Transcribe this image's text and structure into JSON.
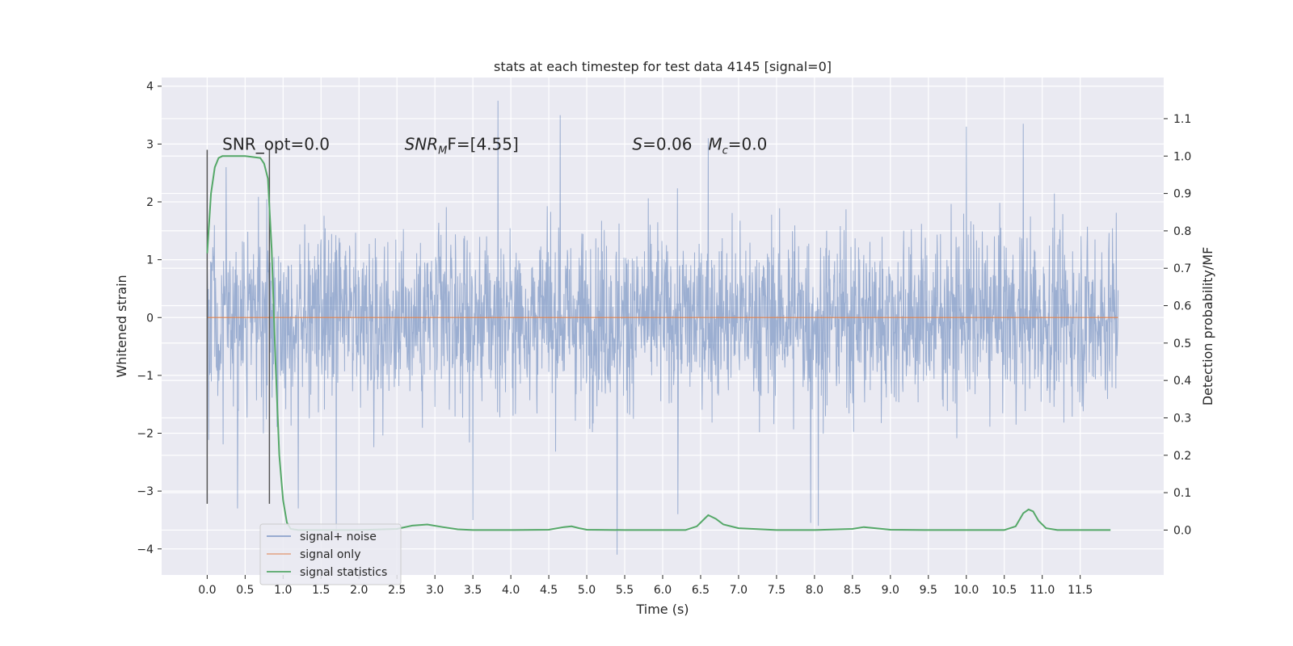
{
  "chart_data": {
    "type": "line",
    "title": "stats at each timestep for test data 4145 [signal=0]",
    "xlabel": "Time (s)",
    "ylabel": "Whitened strain",
    "y2label": "Detection probability/MF",
    "xlim": [
      -0.6,
      12.6
    ],
    "ylim": [
      -4.45,
      4.15
    ],
    "y2lim": [
      -0.12,
      1.21
    ],
    "x_ticks": [
      0.0,
      0.5,
      1.0,
      1.5,
      2.0,
      2.5,
      3.0,
      3.5,
      4.0,
      4.5,
      5.0,
      5.5,
      6.0,
      6.5,
      7.0,
      7.5,
      8.0,
      8.5,
      9.0,
      9.5,
      10.0,
      10.5,
      11.0,
      11.5
    ],
    "x_tick_labels": [
      "0.0",
      "0.5",
      "1.0",
      "1.5",
      "2.0",
      "2.5",
      "3.0",
      "3.5",
      "4.0",
      "4.5",
      "5.0",
      "5.5",
      "6.0",
      "6.5",
      "7.0",
      "7.5",
      "8.0",
      "8.5",
      "9.0",
      "9.5",
      "10.0",
      "10.5",
      "11.0",
      "11.5"
    ],
    "y_ticks": [
      -4,
      -3,
      -2,
      -1,
      0,
      1,
      2,
      3,
      4
    ],
    "y_tick_labels": [
      "−4",
      "−3",
      "−2",
      "−1",
      "0",
      "1",
      "2",
      "3",
      "4"
    ],
    "y2_ticks": [
      0.0,
      0.1,
      0.2,
      0.3,
      0.4,
      0.5,
      0.6,
      0.7,
      0.8,
      0.9,
      1.0,
      1.1
    ],
    "y2_tick_labels": [
      "0.0",
      "0.1",
      "0.2",
      "0.3",
      "0.4",
      "0.5",
      "0.6",
      "0.7",
      "0.8",
      "0.9",
      "1.0",
      "1.1"
    ],
    "grid": true,
    "legend_position": "lower-left",
    "annotations": [
      {
        "text": "SNR_opt=0.0",
        "x": 0.2,
        "y": 3.0
      },
      {
        "prefix": "SNR",
        "sub": "M",
        "suffix": "F=[4.55]",
        "x": 2.6,
        "y": 3.0
      },
      {
        "prefix": "S",
        "suffix": "=0.06",
        "x": 5.6,
        "y": 3.0
      },
      {
        "prefix": "M",
        "sub": "c",
        "suffix": "=0.0",
        "x": 6.6,
        "y": 3.0
      }
    ],
    "vlines": [
      {
        "x": 0.0,
        "ymin": -3.22,
        "ymax": 2.9
      },
      {
        "x": 0.82,
        "ymin": -3.22,
        "ymax": 2.9
      }
    ],
    "series": [
      {
        "name": "signal+ noise",
        "axis": "left",
        "color": "#4c72b0",
        "description": "noisy whitened strain, 0 to ~12 s",
        "peaks": [
          {
            "x": 3.83,
            "y": 3.75
          },
          {
            "x": 4.65,
            "y": 3.5
          },
          {
            "x": 10.0,
            "y": 3.3
          },
          {
            "x": 10.75,
            "y": 3.35
          },
          {
            "x": 0.25,
            "y": 2.6
          },
          {
            "x": 6.6,
            "y": 3.1
          }
        ],
        "troughs": [
          {
            "x": 5.4,
            "y": -4.1
          },
          {
            "x": 1.7,
            "y": -3.8
          },
          {
            "x": 8.05,
            "y": -3.6
          },
          {
            "x": 3.5,
            "y": -3.5
          },
          {
            "x": 7.95,
            "y": -3.55
          },
          {
            "x": 0.4,
            "y": -3.3
          },
          {
            "x": 6.2,
            "y": -3.4
          },
          {
            "x": 1.2,
            "y": -3.3
          }
        ]
      },
      {
        "name": "signal only",
        "axis": "left",
        "color": "#dd8452",
        "x": [
          0.0,
          12.0
        ],
        "y": [
          0.0,
          0.0
        ]
      },
      {
        "name": "signal statistics",
        "axis": "right",
        "color": "#55a868",
        "x": [
          0.0,
          0.05,
          0.1,
          0.15,
          0.2,
          0.3,
          0.5,
          0.7,
          0.75,
          0.8,
          0.85,
          0.9,
          0.95,
          1.0,
          1.05,
          1.1,
          1.2,
          1.5,
          2.0,
          2.5,
          2.7,
          2.9,
          3.1,
          3.3,
          3.5,
          4.0,
          4.5,
          4.7,
          4.8,
          4.9,
          5.0,
          5.5,
          6.0,
          6.3,
          6.45,
          6.55,
          6.6,
          6.7,
          6.8,
          7.0,
          7.5,
          8.0,
          8.5,
          8.65,
          8.8,
          9.0,
          9.5,
          10.0,
          10.5,
          10.65,
          10.75,
          10.82,
          10.88,
          10.95,
          11.05,
          11.2,
          11.5,
          11.9
        ],
        "y": [
          0.74,
          0.9,
          0.97,
          0.995,
          1.0,
          1.0,
          1.0,
          0.995,
          0.98,
          0.94,
          0.75,
          0.45,
          0.2,
          0.08,
          0.02,
          0.003,
          0.0,
          0.0,
          0.0,
          0.003,
          0.012,
          0.015,
          0.008,
          0.002,
          0.0,
          0.0,
          0.001,
          0.008,
          0.01,
          0.005,
          0.001,
          0.0,
          0.0,
          0.0,
          0.01,
          0.03,
          0.04,
          0.03,
          0.015,
          0.005,
          0.0,
          0.0,
          0.003,
          0.008,
          0.005,
          0.001,
          0.0,
          0.0,
          0.0,
          0.01,
          0.045,
          0.055,
          0.05,
          0.025,
          0.005,
          0.0,
          0.0,
          0.0
        ]
      }
    ]
  }
}
